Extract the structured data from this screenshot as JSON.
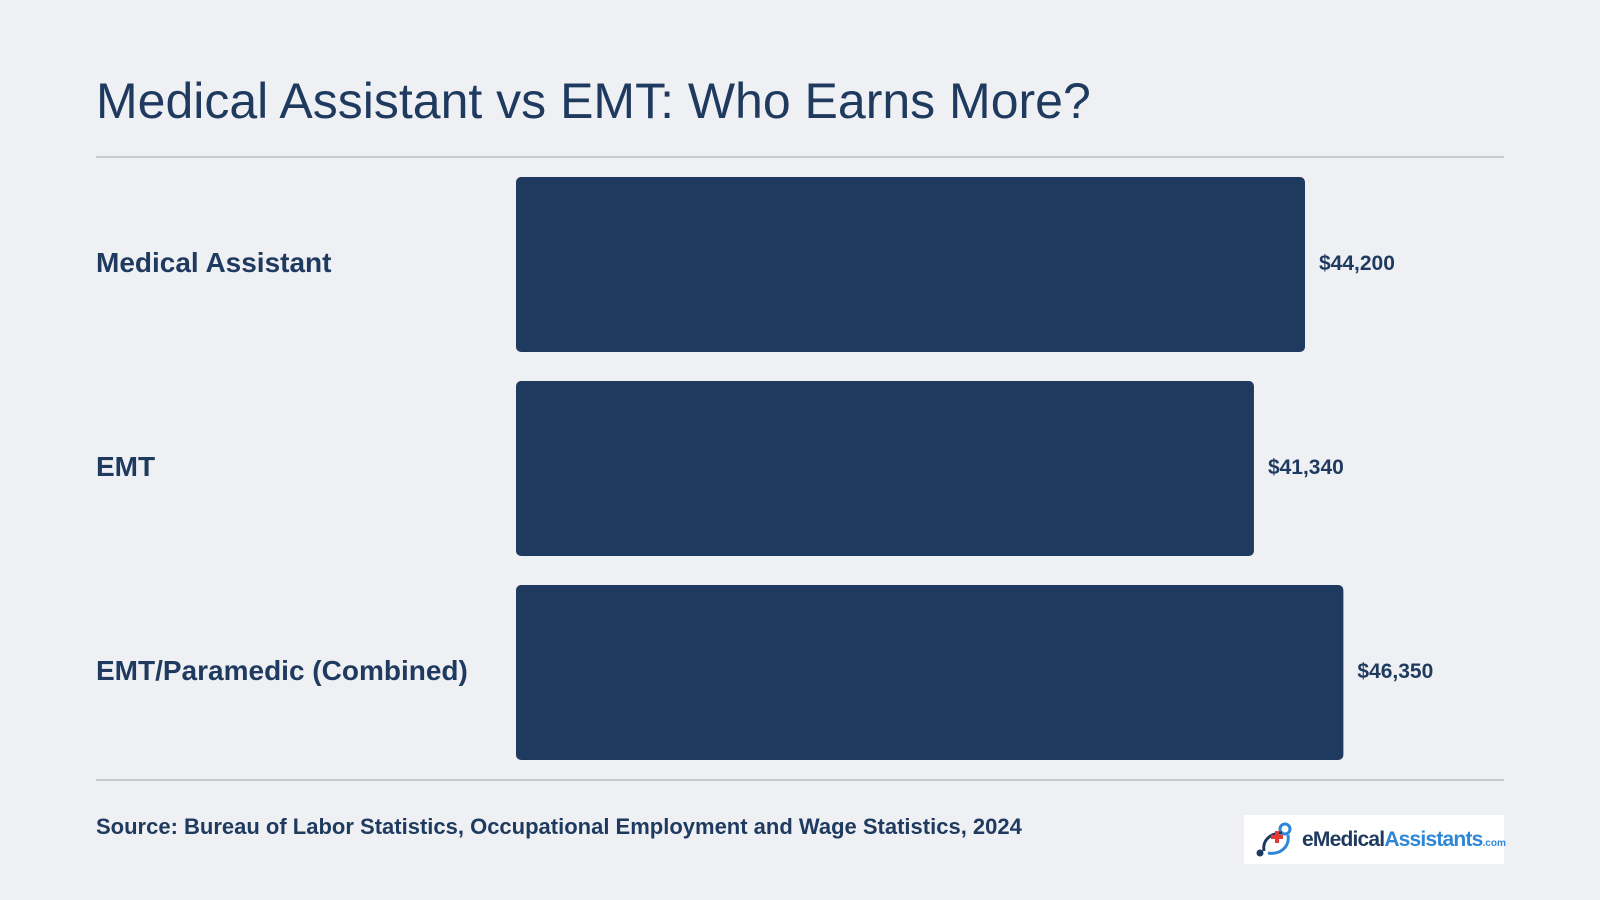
{
  "page": {
    "background": "#eff0f4",
    "text_color": "#1f3a5f"
  },
  "chart_data": {
    "type": "bar",
    "orientation": "horizontal",
    "title": "Medical Assistant vs EMT: Who Earns More?",
    "categories": [
      "Medical Assistant",
      "EMT",
      "EMT/Paramedic (Combined)"
    ],
    "values": [
      44200,
      41340,
      46350
    ],
    "value_labels": [
      "$44,200",
      "$41,340",
      "$46,350"
    ],
    "bar_color": "#1f3a5f",
    "grid": false,
    "legend": "none"
  },
  "footer": {
    "source": "Source: Bureau of Labor Statistics, Occupational Employment and Wage Statistics, 2024",
    "logo": {
      "icon": "medical-cross-logo-icon",
      "text_main": "eMedical",
      "text_accent": "Assistants",
      "text_suffix": ".com",
      "accent_color": "#2e86d6",
      "cross_color": "#e53935"
    }
  }
}
